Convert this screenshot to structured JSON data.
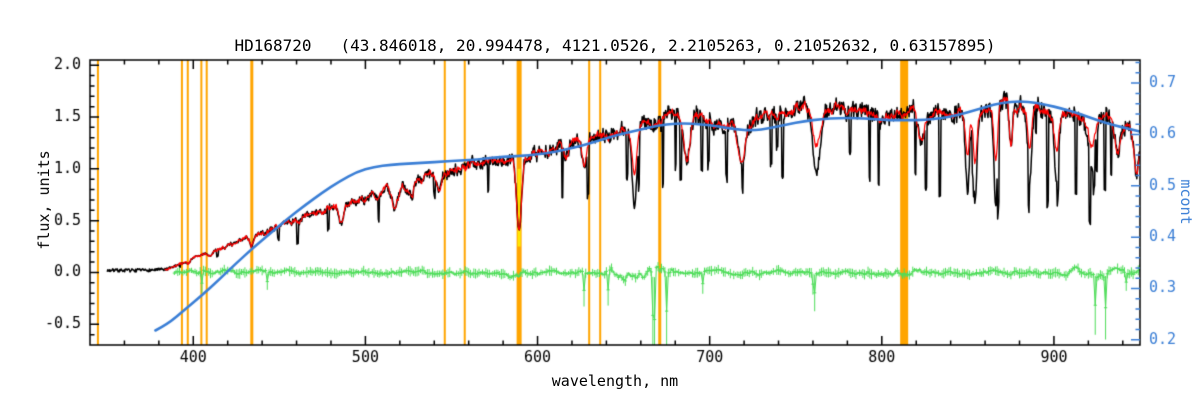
{
  "chart_data": {
    "type": "line",
    "title": "HD168720   (43.846018, 20.994478, 4121.0526, 2.2105263, 0.21052632, 0.63157895)",
    "xlabel": "wavelength, nm",
    "ylabel": "flux, units",
    "ylabel_right": "mcont",
    "xlim": [
      340,
      950
    ],
    "xticks": [
      400,
      500,
      600,
      700,
      800,
      900
    ],
    "x_minor_step": 20,
    "ylim": [
      -0.7,
      2.05
    ],
    "yticks": [
      -0.5,
      0.0,
      0.5,
      1.0,
      1.5,
      2.0
    ],
    "y_minor_step": 0.1,
    "ylim_right": [
      0.19,
      0.745
    ],
    "yticks_right": [
      0.2,
      0.3,
      0.4,
      0.5,
      0.6,
      0.7
    ],
    "y_right_minor_step": 0.02,
    "grid": false,
    "legend": "none",
    "colors": {
      "spectrum": "#000000",
      "fit": "#ff0000",
      "continuum": "#3b7fd6",
      "residual": "#4fdd5a",
      "marker_lines": "#ffa500",
      "sodium_marker": "#ffe800",
      "axis": "#000000",
      "background": "#ffffff"
    },
    "series": [
      {
        "name": "observed-spectrum",
        "color_key": "spectrum"
      },
      {
        "name": "fitted-spectrum",
        "color_key": "fit"
      },
      {
        "name": "mcont-continuum",
        "color_key": "continuum"
      },
      {
        "name": "residual",
        "color_key": "residual"
      }
    ],
    "marker_lines_nm": [
      {
        "nm": 344.6,
        "w": 2
      },
      {
        "nm": 393.4,
        "w": 2
      },
      {
        "nm": 396.8,
        "w": 2
      },
      {
        "nm": 404.7,
        "w": 2
      },
      {
        "nm": 407.8,
        "w": 2
      },
      {
        "nm": 434.0,
        "w": 3
      },
      {
        "nm": 546.1,
        "w": 2
      },
      {
        "nm": 557.7,
        "w": 2
      },
      {
        "nm": 589.3,
        "w": 5
      },
      {
        "nm": 630.0,
        "w": 2
      },
      {
        "nm": 636.4,
        "w": 2
      },
      {
        "nm": 671.0,
        "w": 3
      },
      {
        "nm": 813.0,
        "w": 8
      }
    ],
    "sodium_line": {
      "nm": 589.3,
      "w": 3,
      "flux_from": 0.25,
      "flux_to": 1.0
    },
    "continuum_curve": [
      [
        378,
        -0.56
      ],
      [
        385,
        -0.5
      ],
      [
        395,
        -0.36
      ],
      [
        405,
        -0.22
      ],
      [
        415,
        -0.07
      ],
      [
        425,
        0.09
      ],
      [
        435,
        0.24
      ],
      [
        445,
        0.38
      ],
      [
        455,
        0.52
      ],
      [
        465,
        0.65
      ],
      [
        475,
        0.77
      ],
      [
        485,
        0.88
      ],
      [
        495,
        0.97
      ],
      [
        505,
        1.02
      ],
      [
        515,
        1.04
      ],
      [
        525,
        1.05
      ],
      [
        535,
        1.06
      ],
      [
        545,
        1.07
      ],
      [
        555,
        1.08
      ],
      [
        565,
        1.09
      ],
      [
        575,
        1.11
      ],
      [
        585,
        1.12
      ],
      [
        595,
        1.13
      ],
      [
        605,
        1.15
      ],
      [
        615,
        1.18
      ],
      [
        625,
        1.22
      ],
      [
        635,
        1.27
      ],
      [
        645,
        1.32
      ],
      [
        655,
        1.36
      ],
      [
        665,
        1.4
      ],
      [
        675,
        1.43
      ],
      [
        685,
        1.44
      ],
      [
        695,
        1.43
      ],
      [
        705,
        1.41
      ],
      [
        715,
        1.38
      ],
      [
        725,
        1.37
      ],
      [
        735,
        1.39
      ],
      [
        745,
        1.43
      ],
      [
        755,
        1.46
      ],
      [
        765,
        1.48
      ],
      [
        775,
        1.49
      ],
      [
        785,
        1.49
      ],
      [
        795,
        1.48
      ],
      [
        805,
        1.47
      ],
      [
        815,
        1.47
      ],
      [
        825,
        1.47
      ],
      [
        835,
        1.49
      ],
      [
        845,
        1.52
      ],
      [
        855,
        1.57
      ],
      [
        865,
        1.62
      ],
      [
        875,
        1.65
      ],
      [
        885,
        1.65
      ],
      [
        895,
        1.62
      ],
      [
        905,
        1.58
      ],
      [
        915,
        1.53
      ],
      [
        925,
        1.47
      ],
      [
        935,
        1.42
      ],
      [
        945,
        1.38
      ],
      [
        950,
        1.36
      ]
    ],
    "spectrum_envelope": [
      [
        350,
        0.02
      ],
      [
        370,
        0.02
      ],
      [
        385,
        0.03
      ],
      [
        395,
        0.1
      ],
      [
        405,
        0.17
      ],
      [
        415,
        0.23
      ],
      [
        425,
        0.29
      ],
      [
        435,
        0.35
      ],
      [
        445,
        0.41
      ],
      [
        455,
        0.48
      ],
      [
        465,
        0.54
      ],
      [
        475,
        0.59
      ],
      [
        485,
        0.64
      ],
      [
        495,
        0.7
      ],
      [
        505,
        0.75
      ],
      [
        515,
        0.81
      ],
      [
        525,
        0.87
      ],
      [
        535,
        0.93
      ],
      [
        545,
        0.99
      ],
      [
        555,
        1.04
      ],
      [
        565,
        1.07
      ],
      [
        575,
        1.09
      ],
      [
        585,
        1.1
      ],
      [
        595,
        1.12
      ],
      [
        605,
        1.16
      ],
      [
        615,
        1.21
      ],
      [
        625,
        1.27
      ],
      [
        635,
        1.31
      ],
      [
        645,
        1.35
      ],
      [
        655,
        1.4
      ],
      [
        665,
        1.46
      ],
      [
        675,
        1.51
      ],
      [
        685,
        1.52
      ],
      [
        695,
        1.5
      ],
      [
        705,
        1.45
      ],
      [
        715,
        1.42
      ],
      [
        725,
        1.45
      ],
      [
        735,
        1.52
      ],
      [
        745,
        1.58
      ],
      [
        755,
        1.62
      ],
      [
        765,
        1.6
      ],
      [
        775,
        1.58
      ],
      [
        785,
        1.57
      ],
      [
        795,
        1.54
      ],
      [
        805,
        1.52
      ],
      [
        815,
        1.55
      ],
      [
        825,
        1.56
      ],
      [
        835,
        1.55
      ],
      [
        845,
        1.55
      ],
      [
        855,
        1.57
      ],
      [
        865,
        1.62
      ],
      [
        875,
        1.63
      ],
      [
        885,
        1.6
      ],
      [
        895,
        1.58
      ],
      [
        905,
        1.55
      ],
      [
        915,
        1.51
      ],
      [
        925,
        1.5
      ],
      [
        935,
        1.46
      ],
      [
        945,
        1.42
      ],
      [
        950,
        1.36
      ]
    ],
    "absorption_features": [
      [
        397.0,
        0.25,
        1.5
      ],
      [
        410.2,
        0.22,
        1.5
      ],
      [
        434.0,
        0.28,
        1.5
      ],
      [
        486.1,
        0.28,
        1.8
      ],
      [
        517.0,
        0.22,
        2.5
      ],
      [
        527.0,
        0.15,
        1.5
      ],
      [
        543.0,
        0.2,
        2.0
      ],
      [
        589.3,
        0.62,
        2.0
      ],
      [
        616.0,
        0.12,
        2.0
      ],
      [
        627.0,
        0.2,
        1.5
      ],
      [
        656.3,
        0.55,
        1.8
      ],
      [
        686.7,
        0.3,
        2.5
      ],
      [
        718.5,
        0.22,
        3.0
      ],
      [
        762.0,
        0.4,
        3.0
      ],
      [
        822.7,
        0.18,
        2.5
      ],
      [
        849.8,
        0.5,
        1.5
      ],
      [
        854.2,
        0.55,
        1.5
      ],
      [
        866.2,
        0.6,
        1.5
      ],
      [
        875.0,
        0.25,
        1.2
      ],
      [
        886.0,
        0.45,
        1.5
      ],
      [
        901.5,
        0.45,
        1.8
      ],
      [
        922.0,
        0.35,
        2.5
      ],
      [
        937.0,
        0.22,
        2.5
      ],
      [
        948.0,
        0.3,
        2.0
      ]
    ],
    "spectrum_start_nm": 350,
    "fit_start_nm": 383,
    "residual": {
      "start_nm": 389,
      "end_nm": 950,
      "step_nm": 1.0,
      "base_amp": 0.03,
      "errbar_min": 0.012,
      "errbar_max": 0.05,
      "zones": [
        {
          "from": 575,
          "to": 600,
          "amp": 0.05,
          "spike_p": 0.03,
          "spike_max": 0.15
        },
        {
          "from": 638,
          "to": 678,
          "amp": 0.08,
          "spike_p": 0.1,
          "spike_max": 0.4
        },
        {
          "from": 800,
          "to": 825,
          "amp": 0.05,
          "spike_p": 0.05,
          "spike_max": 0.15
        },
        {
          "from": 905,
          "to": 950,
          "amp": 0.06,
          "spike_p": 0.07,
          "spike_max": 0.3
        }
      ]
    },
    "noise_seed": 7
  }
}
